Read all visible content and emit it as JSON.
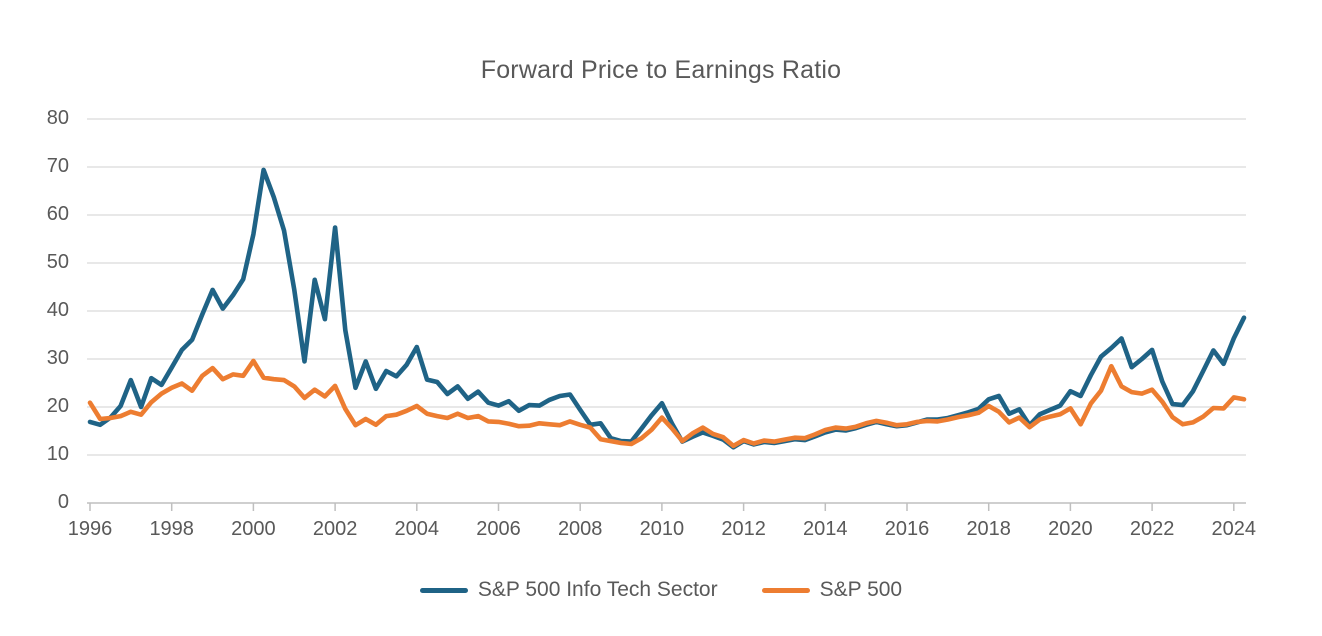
{
  "chart_data": {
    "type": "line",
    "title": "Forward Price to Earnings Ratio",
    "xlabel": "",
    "ylabel": "",
    "x_start": 1996.0,
    "x_step": 0.25,
    "x_end": 2024.25,
    "xlim": [
      1995.95,
      2024.6
    ],
    "ylim": [
      0,
      80
    ],
    "y_ticks": [
      0,
      10,
      20,
      30,
      40,
      50,
      60,
      70,
      80
    ],
    "x_ticks": [
      1996,
      1998,
      2000,
      2002,
      2004,
      2006,
      2008,
      2010,
      2012,
      2014,
      2016,
      2018,
      2020,
      2022,
      2024
    ],
    "grid": "horizontal",
    "legend_position": "bottom",
    "series": [
      {
        "name": "S&P 500 Info Tech Sector",
        "color": "#1F6386",
        "values": [
          16.9,
          16.3,
          17.8,
          20.2,
          25.6,
          20.0,
          26.0,
          24.6,
          28.2,
          31.9,
          34.0,
          39.3,
          44.4,
          40.5,
          43.3,
          46.6,
          56.0,
          69.4,
          63.7,
          56.8,
          44.4,
          29.5,
          46.5,
          38.3,
          57.4,
          36.0,
          24.0,
          29.5,
          23.8,
          27.5,
          26.4,
          28.8,
          32.5,
          25.7,
          25.2,
          22.7,
          24.3,
          21.7,
          23.2,
          20.9,
          20.3,
          21.2,
          19.2,
          20.4,
          20.3,
          21.5,
          22.3,
          22.6,
          19.4,
          16.3,
          16.6,
          13.5,
          12.9,
          12.8,
          15.5,
          18.3,
          20.8,
          16.5,
          12.8,
          13.8,
          14.7,
          14.0,
          13.2,
          11.6,
          12.9,
          12.2,
          12.7,
          12.5,
          12.9,
          13.3,
          13.1,
          13.9,
          14.7,
          15.3,
          15.1,
          15.6,
          16.3,
          16.9,
          16.4,
          16.0,
          16.2,
          16.8,
          17.4,
          17.4,
          17.7,
          18.3,
          18.9,
          19.6,
          21.6,
          22.3,
          18.6,
          19.5,
          16.2,
          18.5,
          19.4,
          20.3,
          23.3,
          22.3,
          26.6,
          30.5,
          32.3,
          34.3,
          28.3,
          30.0,
          31.9,
          25.3,
          20.6,
          20.4,
          23.3,
          27.5,
          31.8,
          29.0,
          34.3,
          38.6
        ]
      },
      {
        "name": "S&P 500",
        "color": "#ED7D31",
        "values": [
          20.9,
          17.5,
          17.7,
          18.1,
          19.0,
          18.4,
          21.0,
          22.8,
          24.0,
          24.9,
          23.4,
          26.5,
          28.1,
          25.8,
          26.8,
          26.5,
          29.6,
          26.1,
          25.8,
          25.6,
          24.3,
          21.9,
          23.6,
          22.2,
          24.4,
          19.6,
          16.2,
          17.5,
          16.3,
          18.1,
          18.4,
          19.2,
          20.2,
          18.6,
          18.1,
          17.7,
          18.6,
          17.7,
          18.1,
          17.0,
          16.9,
          16.5,
          16.0,
          16.1,
          16.6,
          16.4,
          16.2,
          17.0,
          16.3,
          15.7,
          13.3,
          12.9,
          12.5,
          12.3,
          13.5,
          15.3,
          17.8,
          15.5,
          12.9,
          14.5,
          15.7,
          14.4,
          13.7,
          11.9,
          13.1,
          12.4,
          13.0,
          12.8,
          13.2,
          13.6,
          13.5,
          14.3,
          15.2,
          15.7,
          15.5,
          15.9,
          16.6,
          17.1,
          16.7,
          16.2,
          16.4,
          16.9,
          17.1,
          17.0,
          17.4,
          17.9,
          18.3,
          18.8,
          20.2,
          19.0,
          16.8,
          17.8,
          15.8,
          17.4,
          18.0,
          18.5,
          19.7,
          16.4,
          20.7,
          23.4,
          28.5,
          24.3,
          23.1,
          22.8,
          23.6,
          21.1,
          17.9,
          16.4,
          16.8,
          18.0,
          19.8,
          19.7,
          22.0,
          21.6
        ]
      }
    ]
  },
  "colors": {
    "background": "#ffffff",
    "gridline": "#D9D9D9",
    "axis_line": "#BFBFBF",
    "tick_mark": "#BFBFBF",
    "label_text": "#595959",
    "title_text": "#595959"
  }
}
